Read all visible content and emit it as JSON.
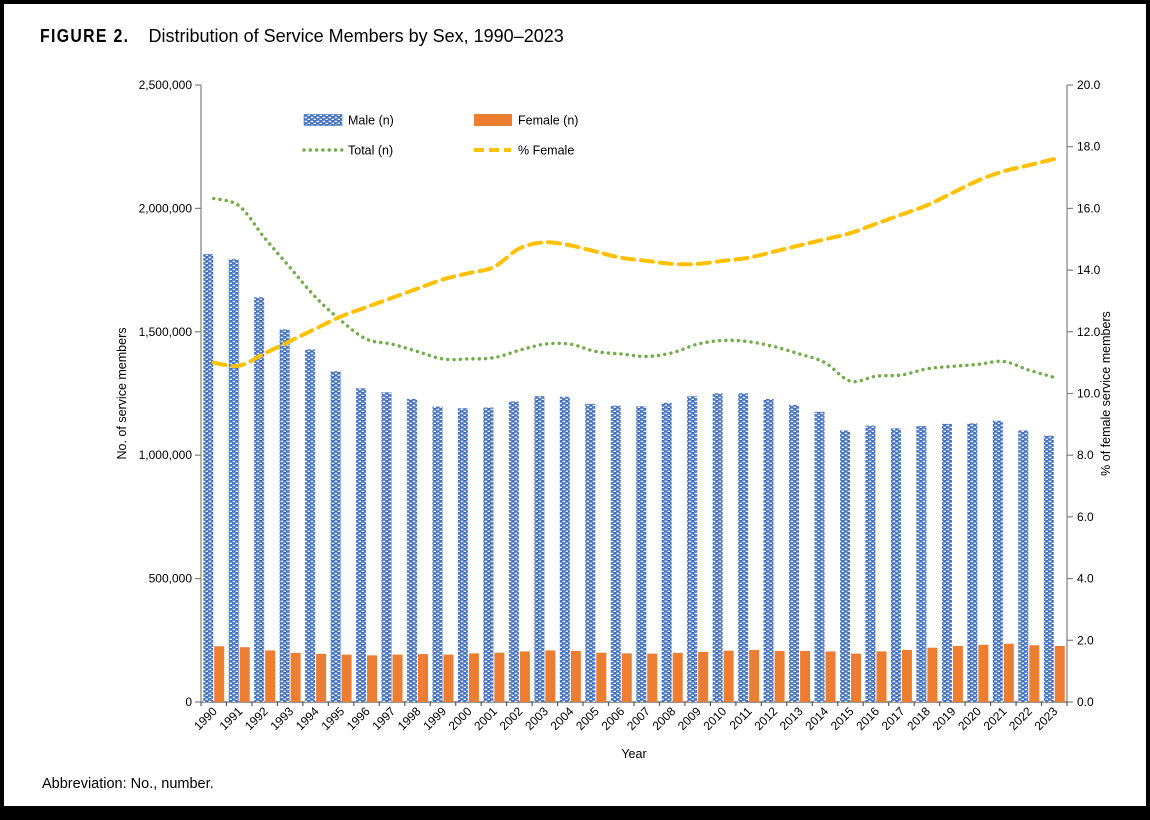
{
  "figure": {
    "label": "FIGURE 2.",
    "title": "Distribution of Service Members by Sex, 1990–2023"
  },
  "footnote": "Abbreviation: No., number.",
  "colors": {
    "male": "#4472C4",
    "female": "#ED7D31",
    "total": "#70AD47",
    "pct_female": "#FFC000",
    "axis": "#808080"
  },
  "chart_data": {
    "type": "bar",
    "subtype": "grouped-bars-with-lines",
    "title": "Distribution of Service Members by Sex, 1990–2023",
    "categories": [
      1990,
      1991,
      1992,
      1993,
      1994,
      1995,
      1996,
      1997,
      1998,
      1999,
      2000,
      2001,
      2002,
      2003,
      2004,
      2005,
      2006,
      2007,
      2008,
      2009,
      2010,
      2011,
      2012,
      2013,
      2014,
      2015,
      2016,
      2017,
      2018,
      2019,
      2020,
      2021,
      2022,
      2023
    ],
    "series": [
      {
        "name": "Male (n)",
        "type": "bar",
        "axis": "left",
        "color": "#4472C4",
        "pattern": "white-weave",
        "values": [
          1815000,
          1794000,
          1640000,
          1510000,
          1429000,
          1340000,
          1271000,
          1255000,
          1228000,
          1197000,
          1190000,
          1193000,
          1218000,
          1239000,
          1237000,
          1208000,
          1201000,
          1198000,
          1212000,
          1239000,
          1251000,
          1251000,
          1228000,
          1204000,
          1176000,
          1100000,
          1120000,
          1109000,
          1118000,
          1127000,
          1129000,
          1140000,
          1100000,
          1079000
        ]
      },
      {
        "name": "Female (n)",
        "type": "bar",
        "axis": "left",
        "color": "#ED7D31",
        "values": [
          226000,
          222000,
          209000,
          199000,
          195000,
          192000,
          189000,
          192000,
          194000,
          192000,
          197000,
          200000,
          205000,
          209000,
          207000,
          200000,
          197000,
          196000,
          199000,
          203000,
          208000,
          211000,
          207000,
          207000,
          205000,
          196000,
          205000,
          211000,
          220000,
          227000,
          232000,
          236000,
          230000,
          227000
        ]
      },
      {
        "name": "Total (n)",
        "type": "line",
        "style": "dotted",
        "axis": "left",
        "color": "#70AD47",
        "values": [
          2040000,
          2010000,
          1880000,
          1760000,
          1640000,
          1545000,
          1470000,
          1450000,
          1420000,
          1390000,
          1390000,
          1395000,
          1425000,
          1450000,
          1450000,
          1420000,
          1410000,
          1400000,
          1415000,
          1450000,
          1465000,
          1460000,
          1440000,
          1410000,
          1375000,
          1300000,
          1320000,
          1325000,
          1350000,
          1360000,
          1368000,
          1380000,
          1345000,
          1315000
        ]
      },
      {
        "name": "% Female",
        "type": "line",
        "style": "dashed",
        "axis": "right",
        "color": "#FFC000",
        "values": [
          11.0,
          10.9,
          11.3,
          11.7,
          12.1,
          12.5,
          12.8,
          13.1,
          13.4,
          13.7,
          13.9,
          14.1,
          14.7,
          14.9,
          14.8,
          14.6,
          14.4,
          14.3,
          14.2,
          14.2,
          14.3,
          14.4,
          14.6,
          14.8,
          15.0,
          15.2,
          15.5,
          15.8,
          16.1,
          16.5,
          16.9,
          17.2,
          17.4,
          17.6
        ]
      }
    ],
    "xlabel": "Year",
    "left_axis": {
      "label": "No. of service members",
      "min": 0,
      "max": 2500000,
      "tick_step": 500000,
      "tick_labels": [
        "0",
        "500,000",
        "1,000,000",
        "1,500,000",
        "2,000,000",
        "2,500,000"
      ]
    },
    "right_axis": {
      "label": "% of female service members",
      "min": 0,
      "max": 20,
      "tick_step": 2,
      "tick_labels": [
        "0.0",
        "2.0",
        "4.0",
        "6.0",
        "8.0",
        "10.0",
        "12.0",
        "14.0",
        "16.0",
        "18.0",
        "20.0"
      ]
    },
    "grid": false,
    "legend_position": "top-inside-two-columns"
  }
}
